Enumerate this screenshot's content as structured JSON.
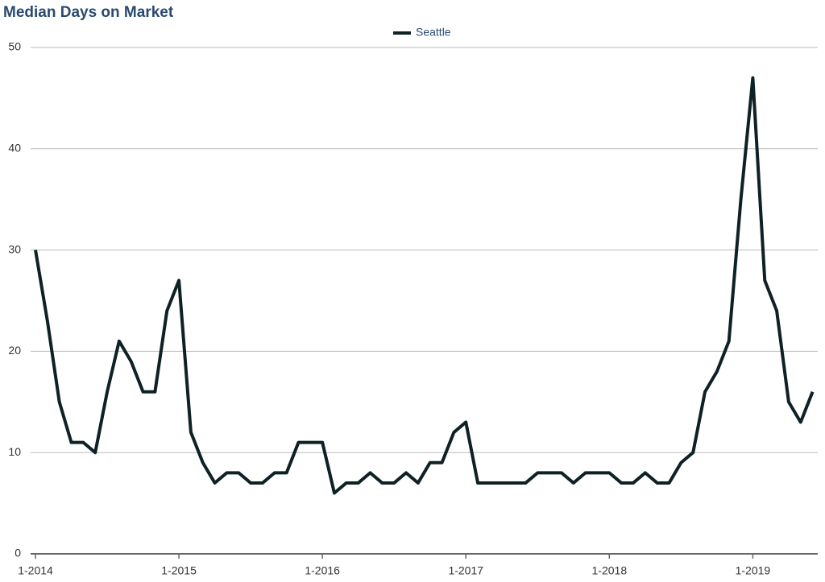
{
  "chart_data": {
    "type": "line",
    "title": "Median Days on Market",
    "categories": [
      "1-2014",
      null,
      null,
      null,
      null,
      null,
      null,
      null,
      null,
      null,
      null,
      null,
      "1-2015",
      null,
      null,
      null,
      null,
      null,
      null,
      null,
      null,
      null,
      null,
      null,
      "1-2016",
      null,
      null,
      null,
      null,
      null,
      null,
      null,
      null,
      null,
      null,
      null,
      "1-2017",
      null,
      null,
      null,
      null,
      null,
      null,
      null,
      null,
      null,
      null,
      null,
      "1-2018",
      null,
      null,
      null,
      null,
      null,
      null,
      null,
      null,
      null,
      null,
      null,
      "1-2019",
      null,
      null,
      null,
      null,
      null
    ],
    "series": [
      {
        "name": "Seattle",
        "color": "#0e2124",
        "values": [
          30,
          23,
          15,
          11,
          11,
          10,
          16,
          21,
          19,
          16,
          16,
          24,
          27,
          12,
          9,
          7,
          8,
          8,
          7,
          7,
          8,
          8,
          11,
          11,
          11,
          6,
          7,
          7,
          8,
          7,
          7,
          8,
          7,
          9,
          9,
          12,
          13,
          7,
          7,
          7,
          7,
          7,
          8,
          8,
          8,
          7,
          8,
          8,
          8,
          7,
          7,
          8,
          7,
          7,
          9,
          10,
          16,
          18,
          21,
          35,
          47,
          27,
          24,
          15,
          13,
          16
        ]
      }
    ],
    "ylim": [
      0,
      50
    ],
    "yticks": [
      0,
      10,
      20,
      30,
      40,
      50
    ],
    "grid": true,
    "legend": "top"
  }
}
